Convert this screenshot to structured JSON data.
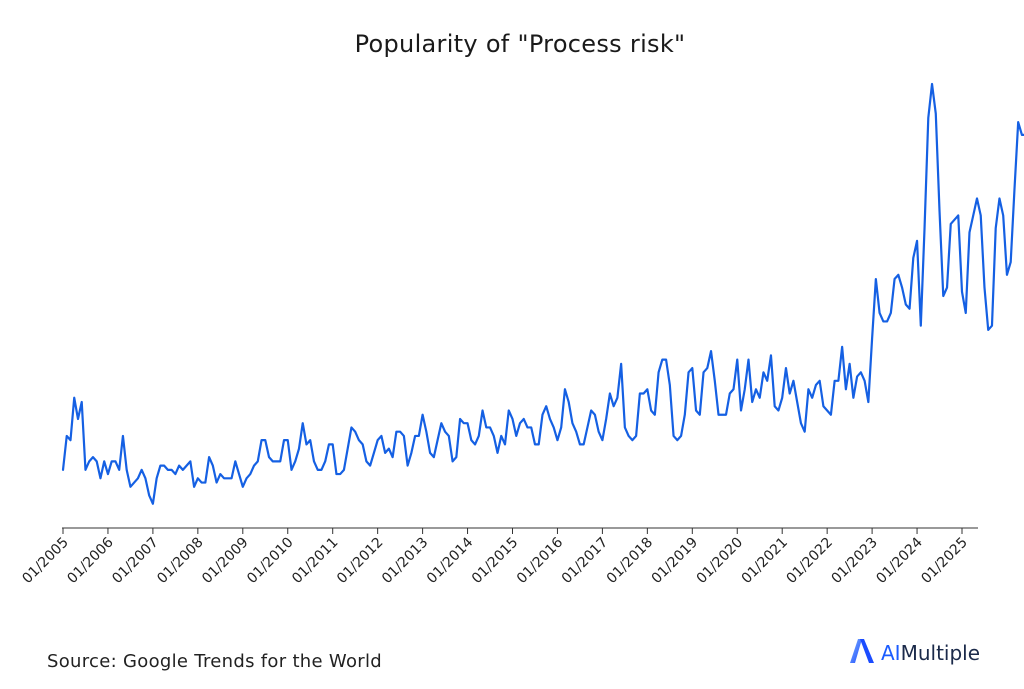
{
  "chart_data": {
    "type": "line",
    "title": "Popularity of \"Process risk\"",
    "xlabel": "",
    "ylabel": "",
    "x_tick_labels": [
      "01/2005",
      "01/2006",
      "01/2007",
      "01/2008",
      "01/2009",
      "01/2010",
      "01/2011",
      "01/2012",
      "01/2013",
      "01/2014",
      "01/2015",
      "01/2016",
      "01/2017",
      "01/2018",
      "01/2019",
      "01/2020",
      "01/2021",
      "01/2022",
      "01/2023",
      "01/2024",
      "01/2025"
    ],
    "x_start": "2005-01",
    "ylim": [
      0,
      100
    ],
    "grid": false,
    "legend": "none",
    "series": [
      {
        "color": "#1560e3",
        "values": [
          9,
          17,
          16,
          26,
          21,
          25,
          9,
          11,
          12,
          11,
          7,
          11,
          8,
          11,
          11,
          9,
          17,
          9,
          5,
          6,
          7,
          9,
          7,
          3,
          1,
          7,
          10,
          10,
          9,
          9,
          8,
          10,
          9,
          10,
          11,
          5,
          7,
          6,
          6,
          12,
          10,
          6,
          8,
          7,
          7,
          7,
          11,
          8,
          5,
          7,
          8,
          10,
          11,
          16,
          16,
          12,
          11,
          11,
          11,
          16,
          16,
          9,
          11,
          14,
          20,
          15,
          16,
          11,
          9,
          9,
          11,
          15,
          15,
          8,
          8,
          9,
          14,
          19,
          18,
          16,
          15,
          11,
          10,
          13,
          16,
          17,
          13,
          14,
          12,
          18,
          18,
          17,
          10,
          13,
          17,
          17,
          22,
          18,
          13,
          12,
          16,
          20,
          18,
          17,
          11,
          12,
          21,
          20,
          20,
          16,
          15,
          17,
          23,
          19,
          19,
          17,
          13,
          17,
          15,
          23,
          21,
          17,
          20,
          21,
          19,
          19,
          15,
          15,
          22,
          24,
          21,
          19,
          16,
          19,
          28,
          25,
          20,
          18,
          15,
          15,
          19,
          23,
          22,
          18,
          16,
          21,
          27,
          24,
          26,
          34,
          19,
          17,
          16,
          17,
          27,
          27,
          28,
          23,
          22,
          32,
          35,
          35,
          29,
          17,
          16,
          17,
          22,
          32,
          33,
          23,
          22,
          32,
          33,
          37,
          30,
          22,
          22,
          22,
          27,
          28,
          35,
          23,
          28,
          35,
          25,
          28,
          26,
          32,
          30,
          36,
          24,
          23,
          26,
          33,
          27,
          30,
          25,
          20,
          18,
          28,
          26,
          29,
          30,
          24,
          23,
          22,
          30,
          30,
          38,
          28,
          34,
          26,
          31,
          32,
          30,
          25,
          40,
          54,
          46,
          44,
          44,
          46,
          54,
          55,
          52,
          48,
          47,
          59,
          63,
          43,
          66,
          92,
          100,
          93,
          70,
          50,
          52,
          67,
          68,
          69,
          51,
          46,
          65,
          69,
          73,
          69,
          52,
          42,
          43,
          66,
          73,
          69,
          55,
          58,
          75,
          91,
          88,
          88,
          61,
          61,
          70,
          88,
          94,
          94,
          70,
          69,
          100,
          87,
          85,
          67
        ]
      }
    ]
  },
  "footer": {
    "source": "Source: Google Trends for the World",
    "brand": "AIMultiple",
    "brand_prefix": "AI",
    "brand_suffix": "Multiple"
  }
}
